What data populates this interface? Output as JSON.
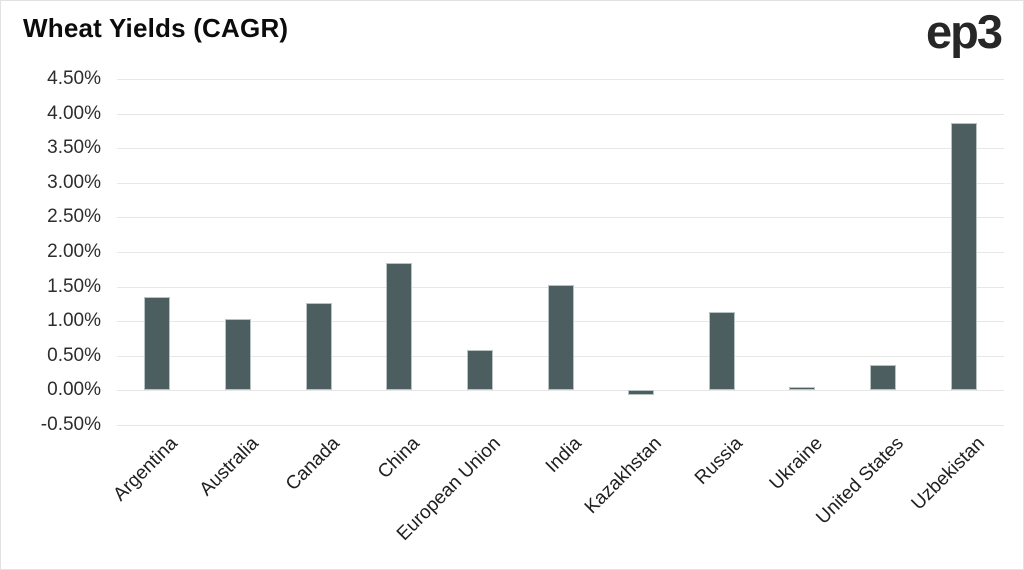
{
  "header": {
    "title": "Wheat Yields (CAGR)",
    "logo": "ep3"
  },
  "chart_data": {
    "type": "bar",
    "title": "Wheat Yields (CAGR)",
    "categories": [
      "Argentina",
      "Australia",
      "Canada",
      "China",
      "European Union",
      "India",
      "Kazakhstan",
      "Russia",
      "Ukraine",
      "United States",
      "Uzbekistan"
    ],
    "values": [
      1.35,
      1.03,
      1.26,
      1.84,
      0.59,
      1.52,
      -0.07,
      1.13,
      0.05,
      0.37,
      3.86
    ],
    "unit": "%",
    "xlabel": "",
    "ylabel": "",
    "ylim": [
      -0.5,
      4.5
    ],
    "y_tick_step": 0.5,
    "y_tick_labels": [
      "4.50%",
      "4.00%",
      "3.50%",
      "3.00%",
      "2.50%",
      "2.00%",
      "1.50%",
      "1.00%",
      "0.50%",
      "0.00%",
      "-0.50%"
    ],
    "grid": true,
    "legend": "none",
    "bar_color": "#4d5e60",
    "bar_border_color": "#b8c3c3",
    "gridline_color": "#e7e7e7"
  }
}
